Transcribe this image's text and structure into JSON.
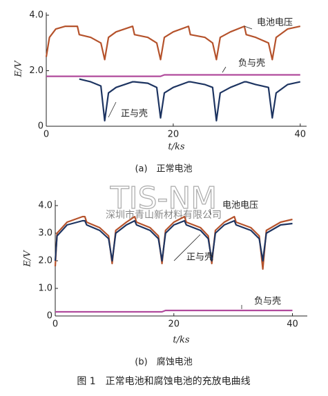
{
  "chart_data": [
    {
      "type": "line",
      "caption": "(a)　正常电池",
      "xlabel": "t/ks",
      "ylabel": "E/V",
      "xlim": [
        0,
        41
      ],
      "ylim": [
        0,
        4.1
      ],
      "xticks": [
        0,
        20,
        40
      ],
      "yticks": [
        0,
        {
          "value": 2,
          "label": "2.0"
        },
        {
          "value": 4,
          "label": "4.0"
        }
      ],
      "x": [
        0,
        0.5,
        1.5,
        3,
        4.9,
        5.2,
        7,
        8.6,
        9.2,
        9.8,
        11,
        13.6,
        13.9,
        16,
        17.4,
        18,
        18.6,
        20,
        22.4,
        22.7,
        25,
        26.2,
        26.8,
        27.4,
        29,
        31.2,
        31.5,
        33,
        35,
        35.6,
        36.2,
        38,
        40
      ],
      "series": [
        {
          "name": "电池电压",
          "color": "#b5522b",
          "values": [
            2.5,
            3.2,
            3.5,
            3.6,
            3.6,
            3.3,
            3.2,
            3.0,
            2.4,
            3.2,
            3.4,
            3.6,
            3.3,
            3.2,
            3.0,
            2.4,
            3.2,
            3.4,
            3.6,
            3.3,
            3.2,
            3.0,
            2.4,
            3.2,
            3.4,
            3.6,
            3.3,
            3.2,
            3.0,
            2.4,
            3.2,
            3.5,
            3.6
          ]
        },
        {
          "name": "负与壳",
          "color": "#b04a9c",
          "values": [
            1.8,
            1.8,
            1.8,
            1.8,
            1.8,
            1.8,
            1.8,
            1.8,
            1.8,
            1.8,
            1.8,
            1.8,
            1.8,
            1.8,
            1.8,
            1.8,
            1.85,
            1.85,
            1.85,
            1.85,
            1.85,
            1.85,
            1.85,
            1.85,
            1.85,
            1.85,
            1.85,
            1.85,
            1.85,
            1.85,
            1.85,
            1.85,
            1.85
          ]
        },
        {
          "name": "正与壳",
          "color": "#1d3461",
          "values": [
            null,
            null,
            null,
            null,
            null,
            1.7,
            1.6,
            1.45,
            0.2,
            1.2,
            1.4,
            1.6,
            1.6,
            1.55,
            1.4,
            0.3,
            1.2,
            1.4,
            1.6,
            1.6,
            1.5,
            1.4,
            0.2,
            1.2,
            1.4,
            1.6,
            1.6,
            1.5,
            1.4,
            0.3,
            1.2,
            1.5,
            1.6
          ]
        }
      ]
    },
    {
      "type": "line",
      "caption": "(b)　腐蚀电池",
      "xlabel": "t/ks",
      "ylabel": "E/V",
      "xlim": [
        0,
        42.5
      ],
      "ylim": [
        0,
        4.2
      ],
      "xticks": [
        0,
        20,
        40
      ],
      "yticks": [
        0,
        {
          "value": 1,
          "label": "1.0"
        },
        {
          "value": 2,
          "label": "2.0"
        },
        {
          "value": 3,
          "label": "3.0"
        },
        {
          "value": 4,
          "label": "4.0"
        }
      ],
      "x": [
        0,
        0.3,
        2,
        4.6,
        5,
        5.3,
        7.5,
        9.0,
        9.6,
        10.2,
        12,
        13.4,
        13.7,
        16,
        17.4,
        18,
        18.6,
        20,
        21.8,
        22.1,
        24.5,
        25.8,
        26.4,
        27,
        28.5,
        30.2,
        30.5,
        33,
        34.4,
        35,
        35.6,
        38,
        40
      ],
      "series": [
        {
          "name": "电池电压",
          "color": "#b5522b",
          "values": [
            1.8,
            3.0,
            3.4,
            3.6,
            3.6,
            3.4,
            3.2,
            2.9,
            1.9,
            3.1,
            3.4,
            3.6,
            3.4,
            3.2,
            2.9,
            1.9,
            3.1,
            3.4,
            3.6,
            3.4,
            3.2,
            2.9,
            1.9,
            3.1,
            3.4,
            3.6,
            3.4,
            3.2,
            2.9,
            1.7,
            3.1,
            3.4,
            3.5
          ]
        },
        {
          "name": "正与壳",
          "color": "#1d3461",
          "values": [
            2.0,
            2.9,
            3.3,
            3.45,
            3.45,
            3.3,
            3.1,
            2.8,
            2.0,
            3.0,
            3.3,
            3.45,
            3.3,
            3.1,
            2.8,
            2.0,
            3.0,
            3.3,
            3.45,
            3.3,
            3.1,
            2.8,
            2.0,
            3.0,
            3.3,
            3.45,
            3.3,
            3.1,
            2.8,
            2.0,
            3.0,
            3.3,
            3.35
          ]
        },
        {
          "name": "负与壳",
          "color": "#b04a9c",
          "values": [
            0.15,
            0.15,
            0.15,
            0.15,
            0.15,
            0.15,
            0.15,
            0.15,
            0.15,
            0.15,
            0.15,
            0.15,
            0.15,
            0.15,
            0.15,
            0.15,
            0.2,
            0.2,
            0.2,
            0.2,
            0.2,
            0.2,
            0.2,
            0.2,
            0.2,
            0.2,
            0.2,
            0.2,
            0.2,
            0.2,
            0.2,
            0.2,
            0.2
          ]
        }
      ]
    }
  ],
  "figure_caption": "图 1　正常电池和腐蚀电池的充放电曲线",
  "watermark": {
    "logo": "TIS-NM",
    "company": "深圳市青山新材料有限公司"
  }
}
